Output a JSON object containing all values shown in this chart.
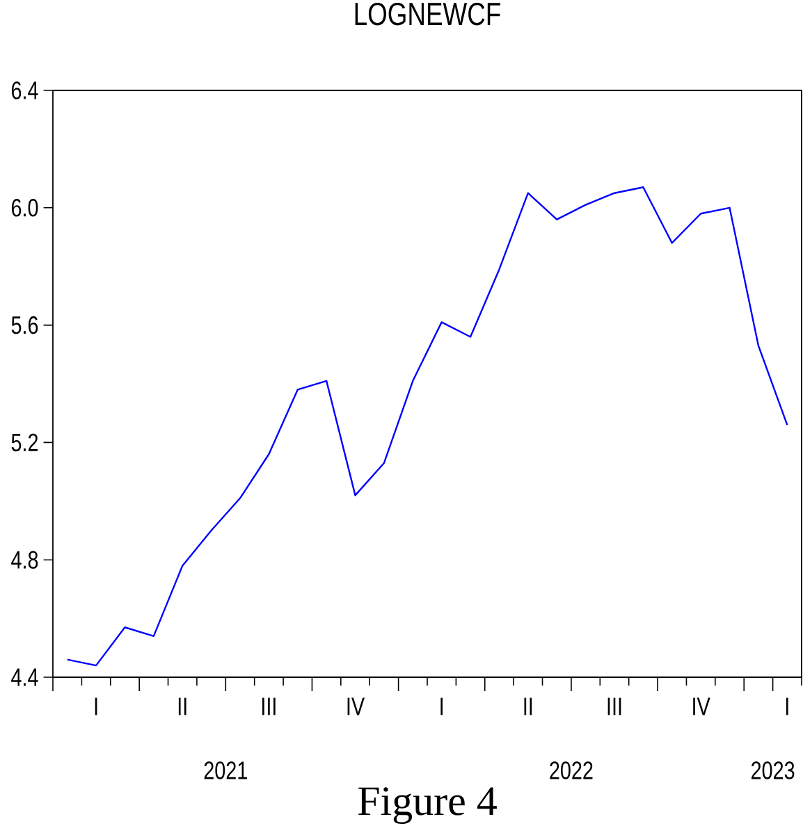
{
  "chart_data": {
    "type": "line",
    "title": "LOGNEWCF",
    "annotations": [
      "Figure 4"
    ],
    "categories": [
      null,
      "I",
      null,
      null,
      "II",
      null,
      null,
      "III",
      null,
      null,
      "IV",
      null,
      null,
      "I",
      null,
      null,
      "II",
      null,
      null,
      "III",
      null,
      null,
      "IV",
      null,
      null,
      "I"
    ],
    "values": [
      4.46,
      4.44,
      4.57,
      4.54,
      4.78,
      4.9,
      5.01,
      5.16,
      5.38,
      5.41,
      5.02,
      5.13,
      5.41,
      5.61,
      5.56,
      5.79,
      6.05,
      5.96,
      6.01,
      6.05,
      6.07,
      5.88,
      5.98,
      6.0,
      5.53,
      5.26
    ],
    "color": "#0000ff",
    "x2lim": [
      "2021-01-01",
      "2023-03-01"
    ],
    "x2ticks": [
      {
        "value": "2021-01-01",
        "label": null
      },
      {
        "value": "2021-02-01",
        "label": null
      },
      {
        "value": "2021-03-01",
        "label": null
      },
      {
        "value": "2021-04-01",
        "label": null
      },
      {
        "value": "2021-05-01",
        "label": null
      },
      {
        "value": "2021-06-01",
        "label": null
      },
      {
        "value": "2021-07-01",
        "label": "2021"
      },
      {
        "value": "2021-08-01",
        "label": null
      },
      {
        "value": "2021-09-01",
        "label": null
      },
      {
        "value": "2021-10-01",
        "label": null
      },
      {
        "value": "2021-11-01",
        "label": null
      },
      {
        "value": "2021-12-01",
        "label": null
      },
      {
        "value": "2022-01-01",
        "label": null
      },
      {
        "value": "2022-02-01",
        "label": null
      },
      {
        "value": "2022-03-01",
        "label": null
      },
      {
        "value": "2022-04-01",
        "label": null
      },
      {
        "value": "2022-05-01",
        "label": null
      },
      {
        "value": "2022-06-01",
        "label": null
      },
      {
        "value": "2022-07-01",
        "label": "2022"
      },
      {
        "value": "2022-08-01",
        "label": null
      },
      {
        "value": "2022-09-01",
        "label": null
      },
      {
        "value": "2022-10-01",
        "label": null
      },
      {
        "value": "2022-11-01",
        "label": null
      },
      {
        "value": "2022-12-01",
        "label": null
      },
      {
        "value": "2023-01-01",
        "label": null
      },
      {
        "value": "2023-02-01",
        "label": "2023"
      },
      {
        "value": "2023-03-01",
        "label": null
      }
    ],
    "ylim": [
      4.4,
      6.4
    ],
    "yticks": [
      4.4,
      4.8,
      5.2,
      5.6,
      {
        "value": 6.0,
        "label": "6.0"
      },
      6.4
    ]
  }
}
